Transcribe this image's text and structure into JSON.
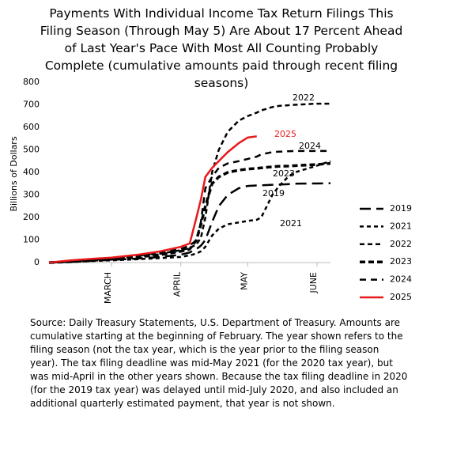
{
  "chart_data": {
    "type": "line",
    "title": "Payments With Individual Income Tax Return Filings This Filing Season (Through May 5) Are About 17 Percent Ahead of Last Year's Pace With Most All Counting Probably Complete (cumulative amounts paid through recent filing seasons)",
    "y_label": "Billions of Dollars",
    "note": "Source: Daily Treasury Statements, U.S. Department of Treasury. Amounts are cumulative starting at the beginning of February. The year shown refers to the filing season (not the tax year, which is the year prior to the filing season year). The tax filing deadline was mid-May 2021 (for the 2020 tax year), but was mid-April in the other years shown. Because the tax filing deadline in 2020 (for the 2019 tax year) was delayed until mid-July 2020, and also included an additional quarterly estimated payment, that year is not shown.",
    "x": [
      0,
      10,
      20,
      28,
      40,
      50,
      59,
      63,
      66,
      68,
      70,
      73,
      76,
      80,
      85,
      89,
      93,
      95,
      100,
      103,
      107,
      110,
      120,
      126
    ],
    "xlim": [
      0,
      126
    ],
    "xticks": [
      {
        "value": 28,
        "label": "MARCH"
      },
      {
        "value": 59,
        "label": "APRIL"
      },
      {
        "value": 89,
        "label": "MAY"
      },
      {
        "value": 120,
        "label": "JUNE"
      }
    ],
    "ylim": [
      0,
      800
    ],
    "yticks": [
      0,
      100,
      200,
      300,
      400,
      500,
      600,
      700,
      800
    ],
    "grid": false,
    "legend": "right",
    "series": [
      {
        "name": "2019",
        "color": "#000000",
        "dash": "14,7",
        "width": 2.5,
        "values": [
          0,
          3,
          8,
          12,
          18,
          25,
          35,
          45,
          60,
          75,
          100,
          180,
          250,
          300,
          330,
          340,
          342,
          343,
          345,
          346,
          348,
          350,
          351,
          352
        ]
      },
      {
        "name": "2021",
        "color": "#000000",
        "dash": "5,4",
        "width": 2.5,
        "values": [
          0,
          3,
          7,
          10,
          15,
          20,
          25,
          32,
          40,
          50,
          70,
          120,
          150,
          170,
          178,
          185,
          190,
          200,
          300,
          340,
          380,
          400,
          430,
          450
        ]
      },
      {
        "name": "2022",
        "color": "#000000",
        "dash": "6,4",
        "width": 2.5,
        "values": [
          0,
          5,
          12,
          18,
          28,
          40,
          55,
          65,
          80,
          110,
          200,
          400,
          500,
          580,
          630,
          650,
          665,
          675,
          690,
          695,
          698,
          700,
          705,
          705
        ]
      },
      {
        "name": "2023",
        "color": "#000000",
        "dash": "7,4",
        "width": 3.5,
        "values": [
          0,
          4,
          10,
          15,
          25,
          35,
          50,
          60,
          100,
          170,
          250,
          350,
          380,
          400,
          410,
          415,
          418,
          420,
          425,
          427,
          428,
          430,
          435,
          440
        ]
      },
      {
        "name": "2024",
        "color": "#000000",
        "dash": "8,6",
        "width": 2.5,
        "values": [
          0,
          6,
          13,
          19,
          30,
          45,
          60,
          75,
          100,
          180,
          330,
          380,
          420,
          440,
          450,
          460,
          470,
          480,
          490,
          492,
          494,
          495,
          495,
          495
        ]
      },
      {
        "name": "2025",
        "color": "#e8191b",
        "dash": "none",
        "width": 2.5,
        "values": [
          0,
          10,
          17,
          22,
          35,
          50,
          70,
          85,
          200,
          280,
          380,
          420,
          450,
          490,
          530,
          555,
          560,
          null,
          null,
          null,
          null,
          null,
          null,
          null
        ]
      }
    ]
  }
}
